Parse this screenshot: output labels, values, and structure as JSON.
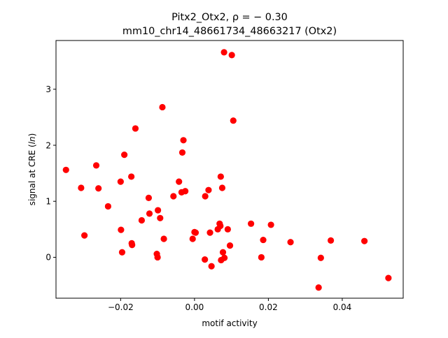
{
  "chart_data": {
    "type": "scatter",
    "title_line1_main": "Pitx2_Otx2, ",
    "title_line1_rho": "ρ = − 0.30",
    "title_line2": "mm10_chr14_48661734_48663217 (Otx2)",
    "xlabel": "motif activity",
    "ylabel_prefix": "signal at CRE (",
    "ylabel_italic": "ln",
    "ylabel_suffix": ")",
    "xlim": [
      -0.0375,
      0.0565
    ],
    "ylim": [
      -0.73,
      3.87
    ],
    "xticks": [
      -0.02,
      0.0,
      0.02,
      0.04
    ],
    "xtick_labels": [
      "−0.02",
      "0.00",
      "0.02",
      "0.04"
    ],
    "yticks": [
      0,
      1,
      2,
      3
    ],
    "ytick_labels": [
      "0",
      "1",
      "2",
      "3"
    ],
    "grid": false,
    "marker_color": "#ff0000",
    "points": [
      {
        "x": -0.0348,
        "y": 1.56
      },
      {
        "x": -0.0307,
        "y": 1.24
      },
      {
        "x": -0.0298,
        "y": 0.39
      },
      {
        "x": -0.0266,
        "y": 1.64
      },
      {
        "x": -0.026,
        "y": 1.23
      },
      {
        "x": -0.0234,
        "y": 0.91
      },
      {
        "x": -0.02,
        "y": 1.35
      },
      {
        "x": -0.0199,
        "y": 0.49
      },
      {
        "x": -0.0196,
        "y": 0.09
      },
      {
        "x": -0.019,
        "y": 1.83
      },
      {
        "x": -0.0171,
        "y": 1.44
      },
      {
        "x": -0.017,
        "y": 0.25
      },
      {
        "x": -0.0169,
        "y": 0.22
      },
      {
        "x": -0.016,
        "y": 2.3
      },
      {
        "x": -0.0143,
        "y": 0.66
      },
      {
        "x": -0.0124,
        "y": 1.06
      },
      {
        "x": -0.0122,
        "y": 0.78
      },
      {
        "x": -0.0102,
        "y": 0.06
      },
      {
        "x": -0.01,
        "y": 0.0
      },
      {
        "x": -0.0099,
        "y": 0.84
      },
      {
        "x": -0.0093,
        "y": 0.7
      },
      {
        "x": -0.0087,
        "y": 2.68
      },
      {
        "x": -0.0083,
        "y": 0.33
      },
      {
        "x": -0.0057,
        "y": 1.09
      },
      {
        "x": -0.0042,
        "y": 1.35
      },
      {
        "x": -0.0035,
        "y": 1.16
      },
      {
        "x": -0.0033,
        "y": 1.87
      },
      {
        "x": -0.003,
        "y": 2.09
      },
      {
        "x": -0.0025,
        "y": 1.18
      },
      {
        "x": -0.0005,
        "y": 0.33
      },
      {
        "x": 0.0,
        "y": 0.45
      },
      {
        "x": 0.0003,
        "y": 0.44
      },
      {
        "x": 0.0028,
        "y": -0.04
      },
      {
        "x": 0.0029,
        "y": 1.09
      },
      {
        "x": 0.0038,
        "y": 1.2
      },
      {
        "x": 0.0042,
        "y": 0.44
      },
      {
        "x": 0.0046,
        "y": -0.16
      },
      {
        "x": 0.0063,
        "y": 0.5
      },
      {
        "x": 0.0068,
        "y": 0.6
      },
      {
        "x": 0.007,
        "y": 0.56
      },
      {
        "x": 0.0071,
        "y": 1.44
      },
      {
        "x": 0.0072,
        "y": -0.05
      },
      {
        "x": 0.0075,
        "y": 1.24
      },
      {
        "x": 0.0077,
        "y": 0.09
      },
      {
        "x": 0.008,
        "y": 3.66
      },
      {
        "x": 0.0081,
        "y": -0.01
      },
      {
        "x": 0.009,
        "y": 0.5
      },
      {
        "x": 0.0096,
        "y": 0.21
      },
      {
        "x": 0.0101,
        "y": 3.61
      },
      {
        "x": 0.0105,
        "y": 2.44
      },
      {
        "x": 0.0153,
        "y": 0.6
      },
      {
        "x": 0.0181,
        "y": 0.0
      },
      {
        "x": 0.0186,
        "y": 0.31
      },
      {
        "x": 0.0207,
        "y": 0.58
      },
      {
        "x": 0.026,
        "y": 0.27
      },
      {
        "x": 0.0336,
        "y": -0.54
      },
      {
        "x": 0.0342,
        "y": -0.01
      },
      {
        "x": 0.0369,
        "y": 0.3
      },
      {
        "x": 0.046,
        "y": 0.29
      },
      {
        "x": 0.0525,
        "y": -0.37
      }
    ]
  }
}
